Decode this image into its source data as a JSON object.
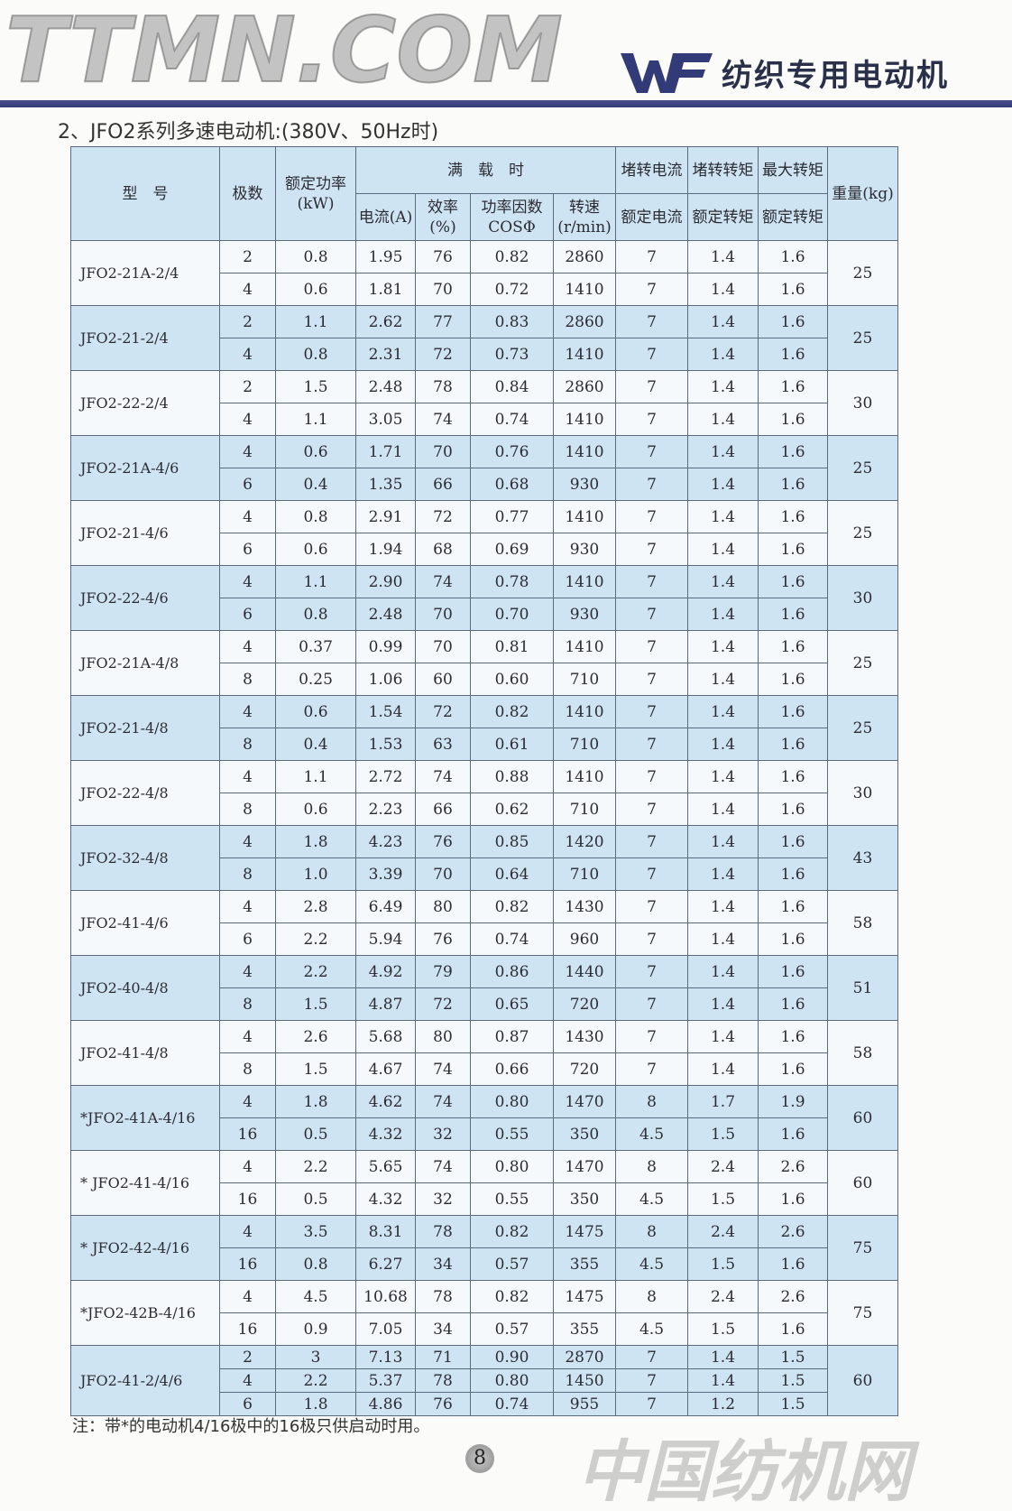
{
  "header": {
    "logo_text": "WF",
    "brand_title": "纺织专用电动机"
  },
  "section_title": "2、JFO2系列多速电动机:(380V、50Hz时)",
  "table": {
    "headers": {
      "model": "型　号",
      "poles": "极数",
      "power": "额定功率(kW)",
      "full_load": "满　载　时",
      "current": "电流(A)",
      "efficiency": "效率(%)",
      "pf": "功率因数COSΦ",
      "speed": "转速(r/min)",
      "lock_current_top": "堵转电流",
      "lock_current_bottom": "额定电流",
      "lock_torque_top": "堵转转矩",
      "lock_torque_bottom": "额定转矩",
      "max_torque_top": "最大转矩",
      "max_torque_bottom": "额定转矩",
      "weight": "重量(kg)"
    },
    "groups": [
      {
        "model": "JFO2-21A-2/4",
        "weight": "25",
        "rows": [
          [
            "2",
            "0.8",
            "1.95",
            "76",
            "0.82",
            "2860",
            "7",
            "1.4",
            "1.6"
          ],
          [
            "4",
            "0.6",
            "1.81",
            "70",
            "0.72",
            "1410",
            "7",
            "1.4",
            "1.6"
          ]
        ]
      },
      {
        "model": "JFO2-21-2/4",
        "weight": "25",
        "rows": [
          [
            "2",
            "1.1",
            "2.62",
            "77",
            "0.83",
            "2860",
            "7",
            "1.4",
            "1.6"
          ],
          [
            "4",
            "0.8",
            "2.31",
            "72",
            "0.73",
            "1410",
            "7",
            "1.4",
            "1.6"
          ]
        ]
      },
      {
        "model": "JFO2-22-2/4",
        "weight": "30",
        "rows": [
          [
            "2",
            "1.5",
            "2.48",
            "78",
            "0.84",
            "2860",
            "7",
            "1.4",
            "1.6"
          ],
          [
            "4",
            "1.1",
            "3.05",
            "74",
            "0.74",
            "1410",
            "7",
            "1.4",
            "1.6"
          ]
        ]
      },
      {
        "model": "JFO2-21A-4/6",
        "weight": "25",
        "rows": [
          [
            "4",
            "0.6",
            "1.71",
            "70",
            "0.76",
            "1410",
            "7",
            "1.4",
            "1.6"
          ],
          [
            "6",
            "0.4",
            "1.35",
            "66",
            "0.68",
            "930",
            "7",
            "1.4",
            "1.6"
          ]
        ]
      },
      {
        "model": "JFO2-21-4/6",
        "weight": "25",
        "rows": [
          [
            "4",
            "0.8",
            "2.91",
            "72",
            "0.77",
            "1410",
            "7",
            "1.4",
            "1.6"
          ],
          [
            "6",
            "0.6",
            "1.94",
            "68",
            "0.69",
            "930",
            "7",
            "1.4",
            "1.6"
          ]
        ]
      },
      {
        "model": "JFO2-22-4/6",
        "weight": "30",
        "rows": [
          [
            "4",
            "1.1",
            "2.90",
            "74",
            "0.78",
            "1410",
            "7",
            "1.4",
            "1.6"
          ],
          [
            "6",
            "0.8",
            "2.48",
            "70",
            "0.70",
            "930",
            "7",
            "1.4",
            "1.6"
          ]
        ]
      },
      {
        "model": "JFO2-21A-4/8",
        "weight": "25",
        "rows": [
          [
            "4",
            "0.37",
            "0.99",
            "70",
            "0.81",
            "1410",
            "7",
            "1.4",
            "1.6"
          ],
          [
            "8",
            "0.25",
            "1.06",
            "60",
            "0.60",
            "710",
            "7",
            "1.4",
            "1.6"
          ]
        ]
      },
      {
        "model": "JFO2-21-4/8",
        "weight": "25",
        "rows": [
          [
            "4",
            "0.6",
            "1.54",
            "72",
            "0.82",
            "1410",
            "7",
            "1.4",
            "1.6"
          ],
          [
            "8",
            "0.4",
            "1.53",
            "63",
            "0.61",
            "710",
            "7",
            "1.4",
            "1.6"
          ]
        ]
      },
      {
        "model": "JFO2-22-4/8",
        "weight": "30",
        "rows": [
          [
            "4",
            "1.1",
            "2.72",
            "74",
            "0.88",
            "1410",
            "7",
            "1.4",
            "1.6"
          ],
          [
            "8",
            "0.6",
            "2.23",
            "66",
            "0.62",
            "710",
            "7",
            "1.4",
            "1.6"
          ]
        ]
      },
      {
        "model": "JFO2-32-4/8",
        "weight": "43",
        "rows": [
          [
            "4",
            "1.8",
            "4.23",
            "76",
            "0.85",
            "1420",
            "7",
            "1.4",
            "1.6"
          ],
          [
            "8",
            "1.0",
            "3.39",
            "70",
            "0.64",
            "710",
            "7",
            "1.4",
            "1.6"
          ]
        ]
      },
      {
        "model": "JFO2-41-4/6",
        "weight": "58",
        "rows": [
          [
            "4",
            "2.8",
            "6.49",
            "80",
            "0.82",
            "1430",
            "7",
            "1.4",
            "1.6"
          ],
          [
            "6",
            "2.2",
            "5.94",
            "76",
            "0.74",
            "960",
            "7",
            "1.4",
            "1.6"
          ]
        ]
      },
      {
        "model": "JFO2-40-4/8",
        "weight": "51",
        "rows": [
          [
            "4",
            "2.2",
            "4.92",
            "79",
            "0.86",
            "1440",
            "7",
            "1.4",
            "1.6"
          ],
          [
            "8",
            "1.5",
            "4.87",
            "72",
            "0.65",
            "720",
            "7",
            "1.4",
            "1.6"
          ]
        ]
      },
      {
        "model": "JFO2-41-4/8",
        "weight": "58",
        "rows": [
          [
            "4",
            "2.6",
            "5.68",
            "80",
            "0.87",
            "1430",
            "7",
            "1.4",
            "1.6"
          ],
          [
            "8",
            "1.5",
            "4.67",
            "74",
            "0.66",
            "720",
            "7",
            "1.4",
            "1.6"
          ]
        ]
      },
      {
        "model": "*JFO2-41A-4/16",
        "weight": "60",
        "rows": [
          [
            "4",
            "1.8",
            "4.62",
            "74",
            "0.80",
            "1470",
            "8",
            "1.7",
            "1.9"
          ],
          [
            "16",
            "0.5",
            "4.32",
            "32",
            "0.55",
            "350",
            "4.5",
            "1.5",
            "1.6"
          ]
        ]
      },
      {
        "model": "* JFO2-41-4/16",
        "weight": "60",
        "rows": [
          [
            "4",
            "2.2",
            "5.65",
            "74",
            "0.80",
            "1470",
            "8",
            "2.4",
            "2.6"
          ],
          [
            "16",
            "0.5",
            "4.32",
            "32",
            "0.55",
            "350",
            "4.5",
            "1.5",
            "1.6"
          ]
        ]
      },
      {
        "model": "* JFO2-42-4/16",
        "weight": "75",
        "rows": [
          [
            "4",
            "3.5",
            "8.31",
            "78",
            "0.82",
            "1475",
            "8",
            "2.4",
            "2.6"
          ],
          [
            "16",
            "0.8",
            "6.27",
            "34",
            "0.57",
            "355",
            "4.5",
            "1.5",
            "1.6"
          ]
        ]
      },
      {
        "model": "*JFO2-42B-4/16",
        "weight": "75",
        "rows": [
          [
            "4",
            "4.5",
            "10.68",
            "78",
            "0.82",
            "1475",
            "8",
            "2.4",
            "2.6"
          ],
          [
            "16",
            "0.9",
            "7.05",
            "34",
            "0.57",
            "355",
            "4.5",
            "1.5",
            "1.6"
          ]
        ]
      },
      {
        "model": "JFO2-41-2/4/6",
        "weight": "60",
        "rows": [
          [
            "2",
            "3",
            "7.13",
            "71",
            "0.90",
            "2870",
            "7",
            "1.4",
            "1.5"
          ],
          [
            "4",
            "2.2",
            "5.37",
            "78",
            "0.80",
            "1450",
            "7",
            "1.4",
            "1.5"
          ],
          [
            "6",
            "1.8",
            "4.86",
            "76",
            "0.74",
            "955",
            "7",
            "1.2",
            "1.5"
          ]
        ]
      }
    ]
  },
  "note": "注：带*的电动机4/16极中的16极只供启动时用。",
  "page_number": "8",
  "watermark": {
    "line1": "TTMN.COM",
    "line2": "中国纺机网"
  },
  "colors": {
    "brand": "#333a78",
    "row_blue": "#cfe4f3",
    "row_white": "#f5f9fc"
  }
}
